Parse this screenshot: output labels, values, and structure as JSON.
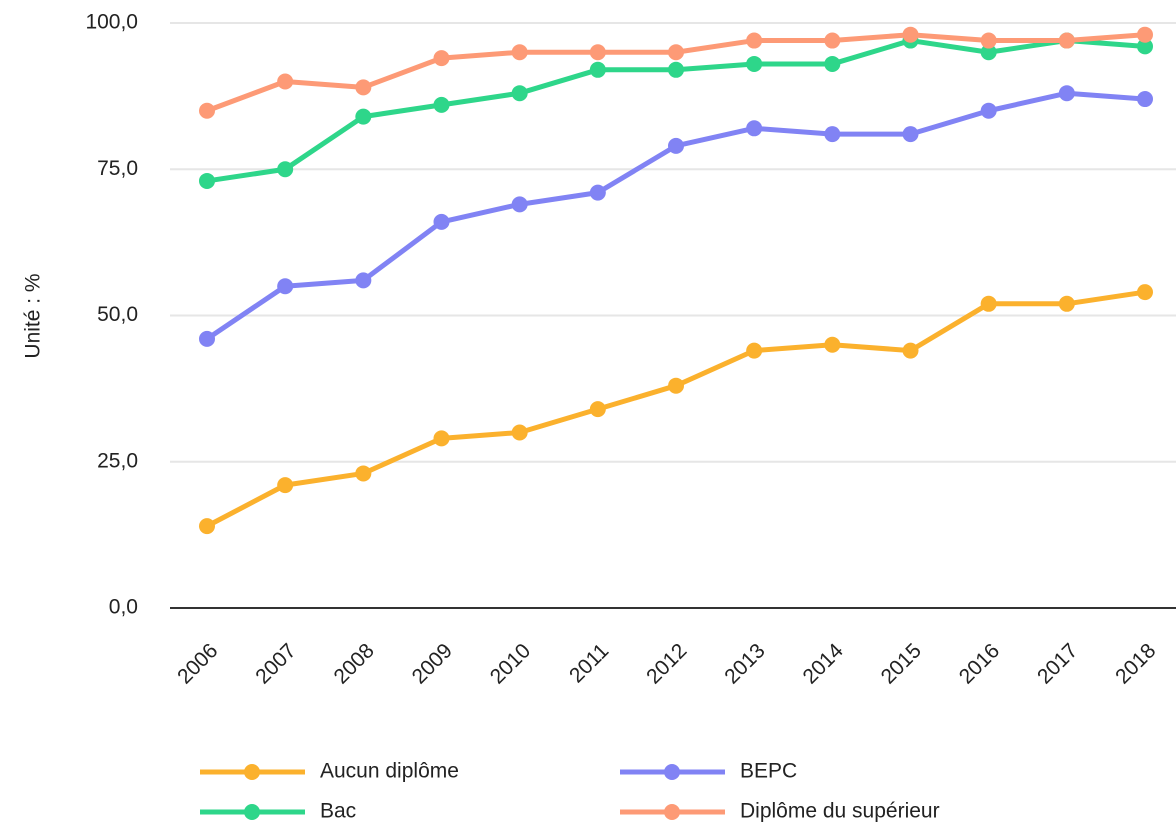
{
  "chart_data": {
    "type": "line",
    "y_label": "Unité : %",
    "categories": [
      "2006",
      "2007",
      "2008",
      "2009",
      "2010",
      "2011",
      "2012",
      "2013",
      "2014",
      "2015",
      "2016",
      "2017",
      "2018"
    ],
    "series": [
      {
        "name": "Aucun diplôme",
        "color": "#fbb12d",
        "values": [
          14,
          21,
          23,
          29,
          30,
          34,
          38,
          44,
          45,
          44,
          52,
          52,
          54
        ]
      },
      {
        "name": "BEPC",
        "color": "#8183f4",
        "values": [
          46,
          55,
          56,
          66,
          69,
          71,
          79,
          82,
          81,
          81,
          85,
          88,
          87
        ]
      },
      {
        "name": "Bac",
        "color": "#2ed68a",
        "values": [
          73,
          75,
          84,
          86,
          88,
          92,
          92,
          93,
          93,
          97,
          95,
          97,
          96
        ]
      },
      {
        "name": "Diplôme du supérieur",
        "color": "#fd9a76",
        "values": [
          85,
          90,
          89,
          94,
          95,
          95,
          95,
          97,
          97,
          98,
          97,
          97,
          98
        ]
      }
    ],
    "ylim": [
      0,
      100
    ],
    "yticks": [
      {
        "value": 0,
        "label": "0,0"
      },
      {
        "value": 25,
        "label": "25,0"
      },
      {
        "value": 50,
        "label": "50,0"
      },
      {
        "value": 75,
        "label": "75,0"
      },
      {
        "value": 100,
        "label": "100,0"
      }
    ],
    "grid": true
  }
}
